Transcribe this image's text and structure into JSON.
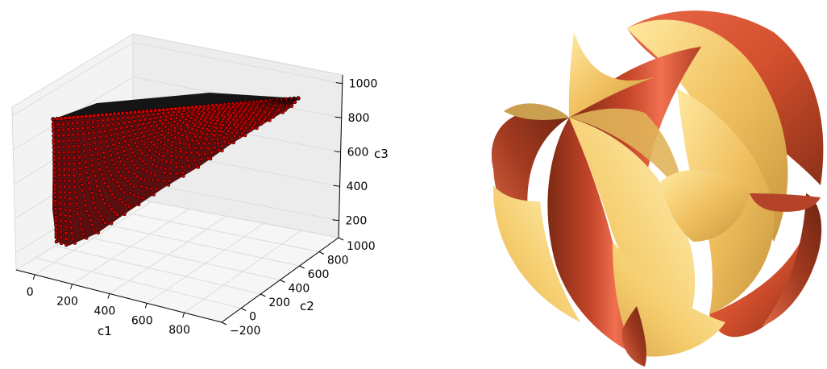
{
  "chart_data": [
    {
      "type": "scatter3d",
      "xlabel": "c1",
      "ylabel": "c2",
      "zlabel": "c3",
      "x_ticks": [
        "0",
        "200",
        "400",
        "600",
        "800"
      ],
      "y_ticks": [
        "−200",
        "0",
        "200",
        "400",
        "600",
        "800",
        "1000"
      ],
      "z_ticks": [
        "200",
        "400",
        "600",
        "800",
        "1000"
      ],
      "xlim": [
        -100,
        1000
      ],
      "ylim": [
        -200,
        1000
      ],
      "zlim": [
        100,
        1050
      ],
      "grid": true,
      "marker_color": "#cc0000",
      "marker_edge_color": "#000000",
      "corner_points": [
        {
          "c1": -80,
          "c2": -150,
          "c3": 850
        },
        {
          "c1": 900,
          "c2": 850,
          "c3": 1000
        },
        {
          "c1": -80,
          "c2": -150,
          "c3": 150
        }
      ]
    },
    {
      "type": "3d-surface",
      "surface_colors": [
        "#f5c96a",
        "#e45c3c",
        "#a83a20",
        "#ffeaa0"
      ]
    }
  ]
}
